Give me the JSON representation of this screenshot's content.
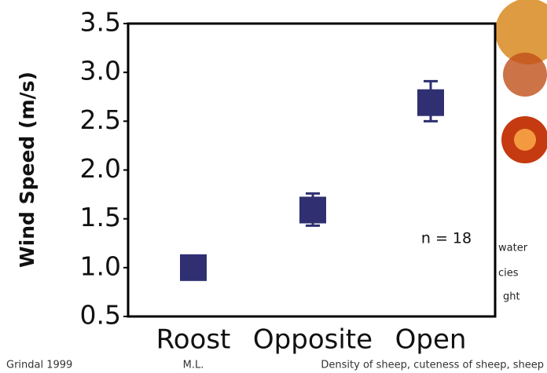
{
  "chart_data": {
    "type": "point",
    "y_label": "Wind Speed (m/s)",
    "categories": [
      "Roost",
      "Opposite",
      "Open"
    ],
    "values": [
      1.0,
      1.59,
      2.69
    ],
    "lower": [
      null,
      1.43,
      2.5
    ],
    "upper": [
      null,
      1.76,
      2.91
    ],
    "color": "#2f2f72",
    "ylim": [
      0.5,
      3.5
    ],
    "yticks": [
      {
        "value": 0.5,
        "label": "0.5"
      },
      {
        "value": 1,
        "label": "1.0"
      },
      {
        "value": 1.5,
        "label": "1.5"
      },
      {
        "value": 2,
        "label": "2.0"
      },
      {
        "value": 2.5,
        "label": "2.5"
      },
      {
        "value": 3,
        "label": "3.0"
      },
      {
        "value": 3.5,
        "label": "3.5"
      }
    ],
    "annotation": "n = 18"
  },
  "footer": {
    "left": "Grindal 1999",
    "center": "M.L.",
    "right": "Density of sheep, cuteness of sheep, sheep"
  },
  "background_fragments": [
    "water",
    "cies",
    "ght"
  ]
}
